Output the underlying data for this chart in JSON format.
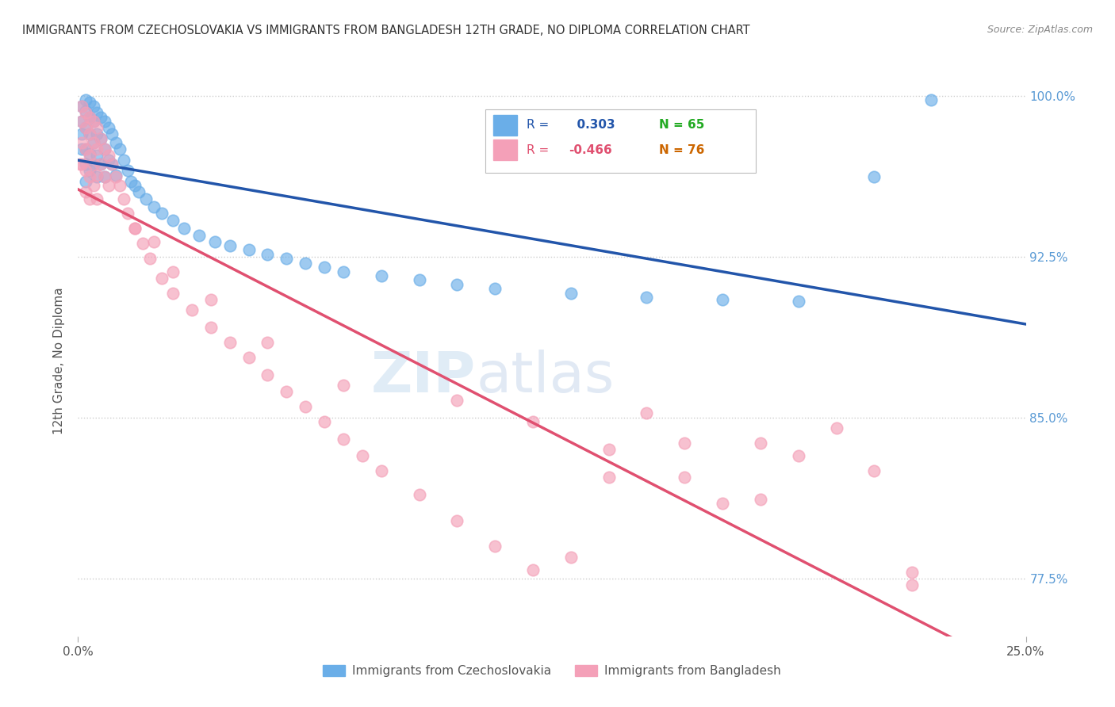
{
  "title": "IMMIGRANTS FROM CZECHOSLOVAKIA VS IMMIGRANTS FROM BANGLADESH 12TH GRADE, NO DIPLOMA CORRELATION CHART",
  "source": "Source: ZipAtlas.com",
  "ylabel_label": "12th Grade, No Diploma",
  "legend_blue_label": "Immigrants from Czechoslovakia",
  "legend_pink_label": "Immigrants from Bangladesh",
  "R_blue": 0.303,
  "N_blue": 65,
  "R_pink": -0.466,
  "N_pink": 76,
  "blue_color": "#6aaee8",
  "pink_color": "#f4a0b8",
  "blue_line_color": "#2255aa",
  "pink_line_color": "#e05070",
  "background_color": "#ffffff",
  "xlim": [
    0.0,
    0.25
  ],
  "ylim": [
    0.748,
    1.005
  ],
  "yticks": [
    1.0,
    0.925,
    0.85,
    0.775
  ],
  "ytick_labels": [
    "100.0%",
    "92.5%",
    "85.0%",
    "77.5%"
  ],
  "blue_x": [
    0.001,
    0.001,
    0.001,
    0.001,
    0.002,
    0.002,
    0.002,
    0.002,
    0.002,
    0.002,
    0.003,
    0.003,
    0.003,
    0.003,
    0.003,
    0.004,
    0.004,
    0.004,
    0.004,
    0.005,
    0.005,
    0.005,
    0.005,
    0.006,
    0.006,
    0.006,
    0.007,
    0.007,
    0.007,
    0.008,
    0.008,
    0.009,
    0.009,
    0.01,
    0.01,
    0.011,
    0.012,
    0.013,
    0.014,
    0.015,
    0.016,
    0.018,
    0.02,
    0.022,
    0.025,
    0.028,
    0.032,
    0.036,
    0.04,
    0.045,
    0.05,
    0.055,
    0.06,
    0.065,
    0.07,
    0.08,
    0.09,
    0.1,
    0.11,
    0.13,
    0.15,
    0.17,
    0.19,
    0.21,
    0.225
  ],
  "blue_y": [
    0.995,
    0.988,
    0.982,
    0.975,
    0.998,
    0.993,
    0.985,
    0.975,
    0.968,
    0.96,
    0.997,
    0.99,
    0.982,
    0.973,
    0.965,
    0.995,
    0.988,
    0.978,
    0.968,
    0.992,
    0.982,
    0.972,
    0.962,
    0.99,
    0.98,
    0.968,
    0.988,
    0.975,
    0.962,
    0.985,
    0.97,
    0.982,
    0.968,
    0.978,
    0.963,
    0.975,
    0.97,
    0.965,
    0.96,
    0.958,
    0.955,
    0.952,
    0.948,
    0.945,
    0.942,
    0.938,
    0.935,
    0.932,
    0.93,
    0.928,
    0.926,
    0.924,
    0.922,
    0.92,
    0.918,
    0.916,
    0.914,
    0.912,
    0.91,
    0.908,
    0.906,
    0.905,
    0.904,
    0.962,
    0.998
  ],
  "pink_x": [
    0.0005,
    0.001,
    0.001,
    0.001,
    0.001,
    0.002,
    0.002,
    0.002,
    0.002,
    0.002,
    0.003,
    0.003,
    0.003,
    0.003,
    0.003,
    0.004,
    0.004,
    0.004,
    0.004,
    0.005,
    0.005,
    0.005,
    0.005,
    0.006,
    0.006,
    0.007,
    0.007,
    0.008,
    0.008,
    0.009,
    0.01,
    0.011,
    0.012,
    0.013,
    0.015,
    0.017,
    0.019,
    0.022,
    0.025,
    0.03,
    0.035,
    0.04,
    0.045,
    0.05,
    0.055,
    0.06,
    0.065,
    0.07,
    0.075,
    0.08,
    0.09,
    0.1,
    0.11,
    0.12,
    0.13,
    0.14,
    0.15,
    0.16,
    0.17,
    0.18,
    0.19,
    0.2,
    0.21,
    0.1,
    0.12,
    0.14,
    0.16,
    0.18,
    0.02,
    0.015,
    0.025,
    0.035,
    0.05,
    0.07,
    0.22,
    0.22
  ],
  "pink_y": [
    0.968,
    0.995,
    0.988,
    0.978,
    0.968,
    0.992,
    0.985,
    0.975,
    0.965,
    0.955,
    0.99,
    0.982,
    0.972,
    0.962,
    0.952,
    0.988,
    0.978,
    0.968,
    0.958,
    0.985,
    0.975,
    0.963,
    0.952,
    0.98,
    0.968,
    0.975,
    0.962,
    0.972,
    0.958,
    0.968,
    0.962,
    0.958,
    0.952,
    0.945,
    0.938,
    0.931,
    0.924,
    0.915,
    0.908,
    0.9,
    0.892,
    0.885,
    0.878,
    0.87,
    0.862,
    0.855,
    0.848,
    0.84,
    0.832,
    0.825,
    0.814,
    0.802,
    0.79,
    0.779,
    0.785,
    0.822,
    0.852,
    0.838,
    0.81,
    0.838,
    0.832,
    0.845,
    0.825,
    0.858,
    0.848,
    0.835,
    0.822,
    0.812,
    0.932,
    0.938,
    0.918,
    0.905,
    0.885,
    0.865,
    0.778,
    0.772
  ]
}
